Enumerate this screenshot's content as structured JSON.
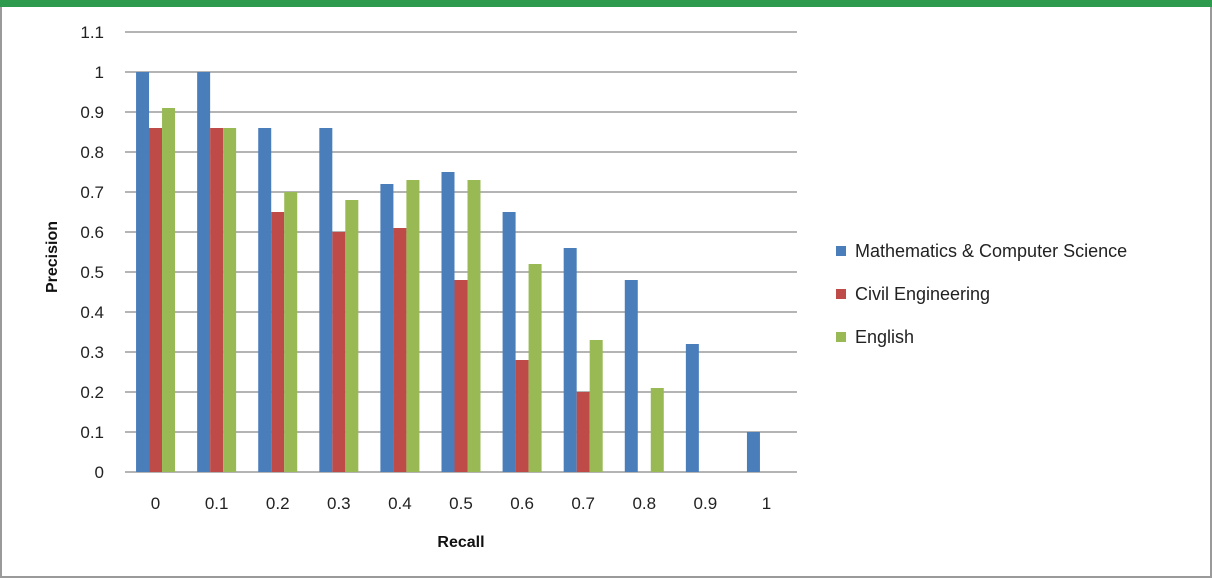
{
  "chart_data": {
    "type": "bar",
    "categories": [
      "0",
      "0.1",
      "0.2",
      "0.3",
      "0.4",
      "0.5",
      "0.6",
      "0.7",
      "0.8",
      "0.9",
      "1"
    ],
    "series": [
      {
        "name": "Mathematics & Computer Science",
        "color": "#4a7ebb",
        "values": [
          1,
          1,
          0.86,
          0.86,
          0.72,
          0.75,
          0.65,
          0.56,
          0.48,
          0.32,
          0.1
        ]
      },
      {
        "name": "Civil Engineering",
        "color": "#be4b48",
        "values": [
          0.86,
          0.86,
          0.65,
          0.6,
          0.61,
          0.48,
          0.28,
          0.2,
          null,
          null,
          null
        ]
      },
      {
        "name": "English",
        "color": "#98b954",
        "values": [
          0.91,
          0.86,
          0.7,
          0.68,
          0.73,
          0.73,
          0.52,
          0.33,
          0.21,
          null,
          null
        ]
      }
    ],
    "xlabel": "Recall",
    "ylabel": "Precision",
    "ylim": [
      0,
      1.1
    ],
    "yticks": [
      "0",
      "0.1",
      "0.2",
      "0.3",
      "0.4",
      "0.5",
      "0.6",
      "0.7",
      "0.8",
      "0.9",
      "1",
      "1.1"
    ],
    "grid": true,
    "legend_position": "right"
  },
  "colors": {
    "top_bar": "#2e9a4e",
    "grid": "#888888"
  }
}
